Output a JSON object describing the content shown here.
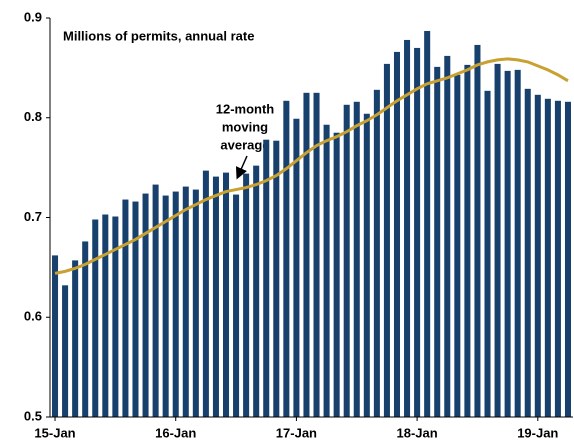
{
  "chart_data": {
    "type": "bar_line",
    "subtitle": "Millions of permits, annual rate",
    "annotation": [
      "12-month",
      "moving",
      "average"
    ],
    "categories": [
      "15-Jan",
      null,
      null,
      null,
      null,
      null,
      null,
      null,
      null,
      null,
      null,
      null,
      "16-Jan",
      null,
      null,
      null,
      null,
      null,
      null,
      null,
      null,
      null,
      null,
      null,
      "17-Jan",
      null,
      null,
      null,
      null,
      null,
      null,
      null,
      null,
      null,
      null,
      null,
      "18-Jan",
      null,
      null,
      null,
      null,
      null,
      null,
      null,
      null,
      null,
      null,
      null,
      "19-Jan",
      null,
      null,
      null
    ],
    "series": [
      {
        "type": "bar",
        "color": "#17406d",
        "values": [
          0.662,
          0.632,
          0.657,
          0.676,
          0.698,
          0.703,
          0.701,
          0.718,
          0.716,
          0.724,
          0.733,
          0.722,
          0.726,
          0.731,
          0.728,
          0.747,
          0.741,
          0.745,
          0.723,
          0.744,
          0.752,
          0.778,
          0.777,
          0.817,
          0.799,
          0.825,
          0.825,
          0.793,
          0.785,
          0.813,
          0.816,
          0.804,
          0.828,
          0.854,
          0.866,
          0.878,
          0.87,
          0.887,
          0.851,
          0.862,
          0.843,
          0.853,
          0.873,
          0.827,
          0.854,
          0.847,
          0.848,
          0.829,
          0.823,
          0.819,
          0.817,
          0.816
        ]
      },
      {
        "type": "line",
        "color": "#c9a032",
        "values": [
          0.644,
          0.646,
          0.649,
          0.653,
          0.658,
          0.663,
          0.668,
          0.673,
          0.678,
          0.684,
          0.69,
          0.696,
          0.702,
          0.708,
          0.713,
          0.718,
          0.722,
          0.726,
          0.728,
          0.73,
          0.733,
          0.737,
          0.742,
          0.749,
          0.757,
          0.765,
          0.772,
          0.777,
          0.781,
          0.786,
          0.792,
          0.797,
          0.803,
          0.81,
          0.817,
          0.823,
          0.829,
          0.834,
          0.837,
          0.84,
          0.844,
          0.848,
          0.853,
          0.856,
          0.858,
          0.859,
          0.858,
          0.856,
          0.852,
          0.848,
          0.843,
          0.837
        ]
      }
    ],
    "ylim": [
      0.5,
      0.9
    ],
    "yticks": [
      0.5,
      0.6,
      0.7,
      0.8,
      0.9
    ],
    "grid": false
  }
}
